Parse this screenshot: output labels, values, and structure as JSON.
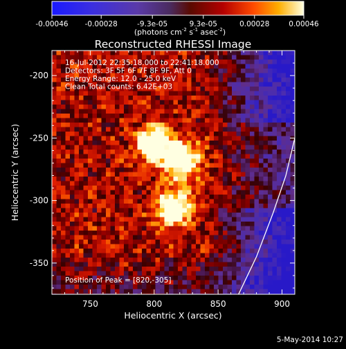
{
  "chart_data": {
    "type": "heatmap",
    "title": "Reconstructed RHESSI Image",
    "xlabel": "Heliocentric X (arcsec)",
    "ylabel": "Heliocentric Y (arcsec)",
    "xlim": [
      720,
      910
    ],
    "ylim": [
      -375,
      -180
    ],
    "x_ticks": [
      750,
      800,
      850,
      900
    ],
    "y_ticks": [
      -200,
      -250,
      -300,
      -350
    ],
    "colorbar": {
      "range": [
        -0.00046,
        0.00046
      ],
      "ticks": [
        "-0.00046",
        "-0.00028",
        "-9.3e-05",
        "9.3e-05",
        "0.00028",
        "0.00046"
      ],
      "tick_values": [
        -0.00046,
        -0.00028,
        -9.3e-05,
        9.3e-05,
        0.00028,
        0.00046
      ],
      "units_main": "(photons cm",
      "units_sup1": "-2",
      "units_mid": " s",
      "units_sup2": "-1",
      "units_tail": " asec",
      "units_sup3": "-2",
      "units_close": ")"
    },
    "annotations": [
      "16-Jul-2012 22:35:18.000 to 22:41:18.000",
      "Detectors: 3F 5F 6F 7F 8F 9F, Att 0",
      "Energy Range: 12.0 - 25.0 keV",
      "Clean     Total counts: 6.42E+03"
    ],
    "peak_label": "Position of Peak = [820,-305]",
    "peaks": [
      {
        "x": 822,
        "y": -268,
        "value": 0.00046
      },
      {
        "x": 815,
        "y": -306,
        "value": 0.00046
      },
      {
        "x": 800,
        "y": -255,
        "value": 0.00034
      }
    ],
    "limb_curve": [
      [
        866,
        -375
      ],
      [
        880,
        -345
      ],
      [
        893,
        -310
      ],
      [
        903,
        -280
      ],
      [
        910,
        -250
      ]
    ],
    "timestamp": "5-May-2014 10:27"
  }
}
